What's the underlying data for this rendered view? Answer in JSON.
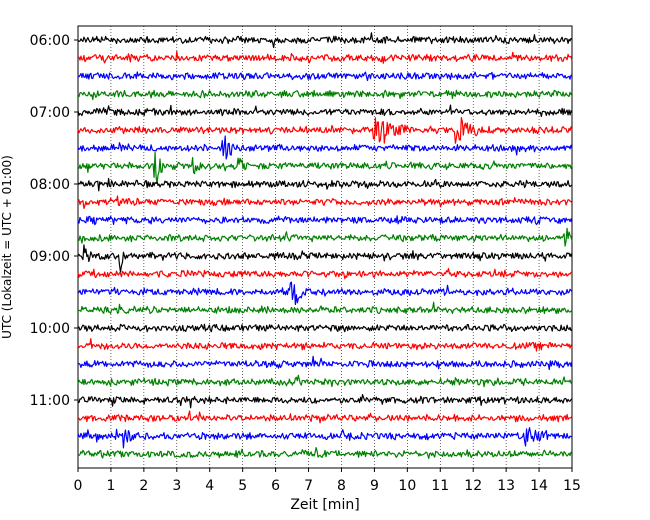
{
  "chart_data": {
    "type": "line",
    "xlabel": "Zeit  [min]",
    "ylabel": "UTC (Lokalzeit = UTC + 01:00)",
    "xlim": [
      0,
      15
    ],
    "x_ticks": [
      "0",
      "1",
      "2",
      "3",
      "4",
      "5",
      "6",
      "7",
      "8",
      "9",
      "10",
      "11",
      "12",
      "13",
      "14",
      "15"
    ],
    "y_tick_labels": [
      "06:00",
      "07:00",
      "08:00",
      "09:00",
      "10:00",
      "11:00"
    ],
    "y_tick_trace_index": [
      0,
      4,
      8,
      12,
      16,
      20
    ],
    "grid": "vertical dotted at each minute",
    "trace_colors": [
      "#000000",
      "#ff0000",
      "#0000ff",
      "#008000"
    ],
    "trace_interval_minutes": 15,
    "trace_start": "06:00",
    "trace_count": 24,
    "noise_amplitude": 0.18,
    "events": [
      {
        "trace": 5,
        "minute": 9.0,
        "amplitude": 0.7,
        "duration": 1.0
      },
      {
        "trace": 5,
        "minute": 11.5,
        "amplitude": 0.7,
        "duration": 0.8
      },
      {
        "trace": 6,
        "minute": 4.4,
        "amplitude": 0.8,
        "duration": 0.5
      },
      {
        "trace": 7,
        "minute": 2.35,
        "amplitude": 1.2,
        "duration": 0.25
      },
      {
        "trace": 7,
        "minute": 3.5,
        "amplitude": 0.4,
        "duration": 0.3
      },
      {
        "trace": 7,
        "minute": 4.9,
        "amplitude": 0.35,
        "duration": 0.3
      },
      {
        "trace": 11,
        "minute": 14.8,
        "amplitude": 0.5,
        "duration": 0.3
      },
      {
        "trace": 12,
        "minute": 0.2,
        "amplitude": 0.8,
        "duration": 0.2
      },
      {
        "trace": 12,
        "minute": 1.3,
        "amplitude": 0.8,
        "duration": 0.1
      },
      {
        "trace": 14,
        "minute": 6.5,
        "amplitude": 1.4,
        "duration": 0.3
      },
      {
        "trace": 22,
        "minute": 1.4,
        "amplitude": 0.5,
        "duration": 0.3
      },
      {
        "trace": 22,
        "minute": 13.6,
        "amplitude": 0.5,
        "duration": 0.7
      }
    ]
  }
}
